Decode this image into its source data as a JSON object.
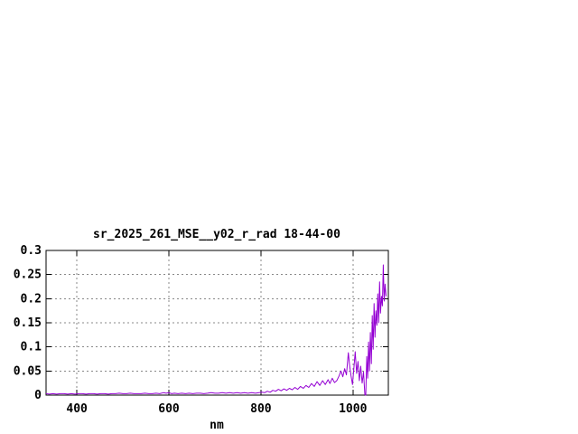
{
  "window": {
    "background_color": "#ffffff"
  },
  "chart_data": {
    "type": "line",
    "title": "sr_2025_261_MSE__y02_r_rad 18-44-00",
    "xlabel": "nm",
    "ylabel": "",
    "xlim": [
      333,
      1077
    ],
    "ylim": [
      0,
      0.3
    ],
    "xticks": [
      400,
      600,
      800,
      1000
    ],
    "xtick_labels": [
      "400",
      "600",
      "800",
      "1000"
    ],
    "yticks": [
      0,
      0.05,
      0.1,
      0.15,
      0.2,
      0.25,
      0.3
    ],
    "ytick_labels": [
      "0",
      "0.05",
      "0.1",
      "0.15",
      "0.2",
      "0.25",
      "0.3"
    ],
    "grid": true,
    "grid_style": "dashed",
    "grid_color": "#888888",
    "border_color": "#000000",
    "legend_position": "none",
    "line_color": "#9400D3",
    "series": [
      {
        "name": "sr_2025_261_MSE__y02_r_rad",
        "points": [
          [
            333,
            0.003
          ],
          [
            340,
            0.002
          ],
          [
            348,
            0.003
          ],
          [
            356,
            0.002
          ],
          [
            364,
            0.003
          ],
          [
            372,
            0.003
          ],
          [
            380,
            0.002
          ],
          [
            388,
            0.003
          ],
          [
            396,
            0.002
          ],
          [
            404,
            0.003
          ],
          [
            412,
            0.003
          ],
          [
            420,
            0.002
          ],
          [
            428,
            0.003
          ],
          [
            436,
            0.003
          ],
          [
            444,
            0.002
          ],
          [
            452,
            0.003
          ],
          [
            460,
            0.003
          ],
          [
            468,
            0.002
          ],
          [
            476,
            0.003
          ],
          [
            484,
            0.003
          ],
          [
            492,
            0.004
          ],
          [
            500,
            0.003
          ],
          [
            508,
            0.003
          ],
          [
            516,
            0.004
          ],
          [
            524,
            0.003
          ],
          [
            532,
            0.003
          ],
          [
            540,
            0.003
          ],
          [
            548,
            0.004
          ],
          [
            556,
            0.003
          ],
          [
            564,
            0.003
          ],
          [
            572,
            0.004
          ],
          [
            580,
            0.003
          ],
          [
            588,
            0.005
          ],
          [
            594,
            0.004
          ],
          [
            600,
            0.005
          ],
          [
            606,
            0.003
          ],
          [
            612,
            0.004
          ],
          [
            620,
            0.003
          ],
          [
            628,
            0.004
          ],
          [
            636,
            0.003
          ],
          [
            644,
            0.004
          ],
          [
            652,
            0.003
          ],
          [
            660,
            0.004
          ],
          [
            668,
            0.004
          ],
          [
            676,
            0.003
          ],
          [
            684,
            0.004
          ],
          [
            692,
            0.005
          ],
          [
            700,
            0.004
          ],
          [
            708,
            0.004
          ],
          [
            716,
            0.005
          ],
          [
            724,
            0.004
          ],
          [
            732,
            0.005
          ],
          [
            740,
            0.004
          ],
          [
            748,
            0.005
          ],
          [
            756,
            0.004
          ],
          [
            764,
            0.005
          ],
          [
            772,
            0.004
          ],
          [
            780,
            0.005
          ],
          [
            788,
            0.004
          ],
          [
            796,
            0.005
          ],
          [
            802,
            0.006
          ],
          [
            808,
            0.005
          ],
          [
            814,
            0.008
          ],
          [
            820,
            0.006
          ],
          [
            826,
            0.01
          ],
          [
            832,
            0.008
          ],
          [
            838,
            0.012
          ],
          [
            844,
            0.009
          ],
          [
            850,
            0.013
          ],
          [
            856,
            0.01
          ],
          [
            862,
            0.014
          ],
          [
            868,
            0.011
          ],
          [
            874,
            0.016
          ],
          [
            880,
            0.012
          ],
          [
            886,
            0.018
          ],
          [
            892,
            0.014
          ],
          [
            898,
            0.02
          ],
          [
            904,
            0.016
          ],
          [
            910,
            0.024
          ],
          [
            916,
            0.018
          ],
          [
            922,
            0.028
          ],
          [
            928,
            0.02
          ],
          [
            934,
            0.03
          ],
          [
            940,
            0.022
          ],
          [
            946,
            0.032
          ],
          [
            950,
            0.024
          ],
          [
            955,
            0.035
          ],
          [
            960,
            0.026
          ],
          [
            965,
            0.03
          ],
          [
            970,
            0.04
          ],
          [
            974,
            0.05
          ],
          [
            978,
            0.038
          ],
          [
            982,
            0.055
          ],
          [
            986,
            0.042
          ],
          [
            990,
            0.088
          ],
          [
            993,
            0.06
          ],
          [
            996,
            0.04
          ],
          [
            999,
            0.022
          ],
          [
            1002,
            0.055
          ],
          [
            1005,
            0.09
          ],
          [
            1008,
            0.045
          ],
          [
            1011,
            0.07
          ],
          [
            1014,
            0.03
          ],
          [
            1017,
            0.06
          ],
          [
            1020,
            0.025
          ],
          [
            1023,
            0.048
          ],
          [
            1026,
            0.001
          ],
          [
            1028,
            0.0
          ],
          [
            1030,
            0.08
          ],
          [
            1032,
            0.035
          ],
          [
            1034,
            0.11
          ],
          [
            1036,
            0.05
          ],
          [
            1038,
            0.13
          ],
          [
            1040,
            0.065
          ],
          [
            1042,
            0.165
          ],
          [
            1044,
            0.095
          ],
          [
            1046,
            0.19
          ],
          [
            1048,
            0.12
          ],
          [
            1050,
            0.175
          ],
          [
            1052,
            0.145
          ],
          [
            1054,
            0.21
          ],
          [
            1056,
            0.15
          ],
          [
            1058,
            0.235
          ],
          [
            1060,
            0.17
          ],
          [
            1062,
            0.205
          ],
          [
            1064,
            0.185
          ],
          [
            1066,
            0.27
          ],
          [
            1068,
            0.195
          ],
          [
            1070,
            0.23
          ],
          [
            1072,
            0.205
          ]
        ]
      }
    ]
  }
}
